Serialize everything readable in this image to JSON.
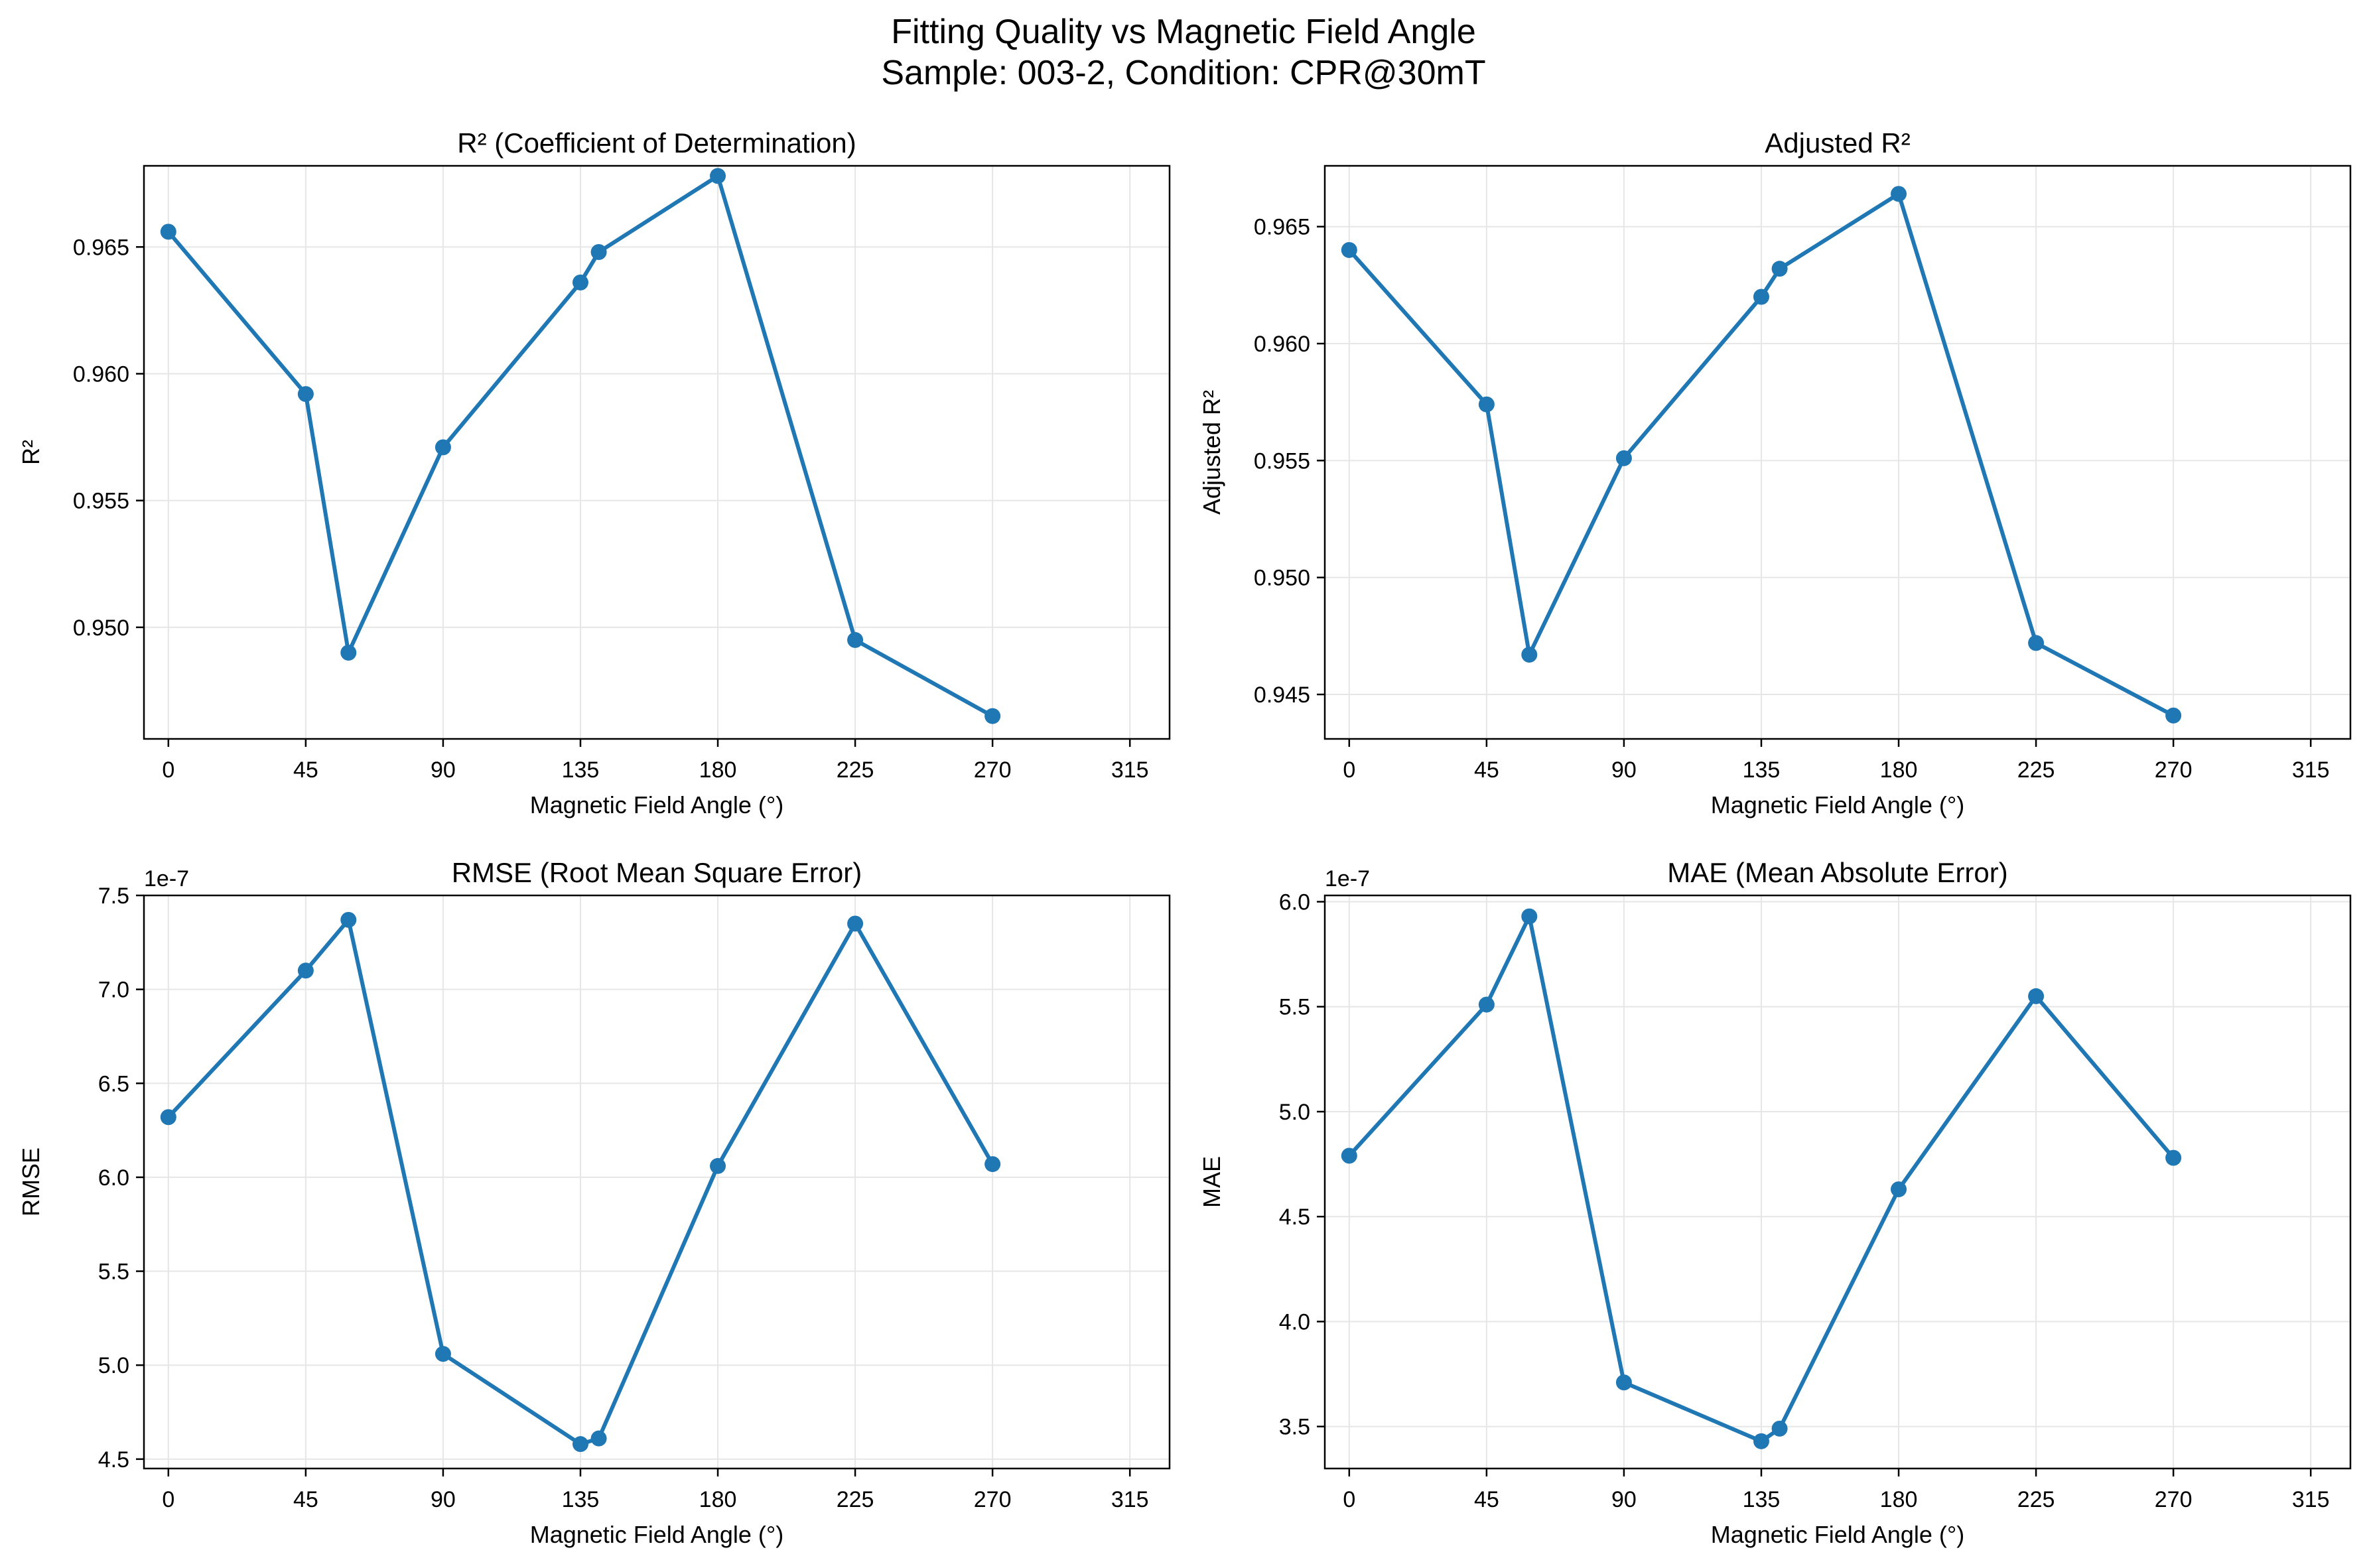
{
  "figure": {
    "title_line1": "Fitting Quality vs Magnetic Field Angle",
    "title_line2": "Sample: 003-2, Condition: CPR@30mT"
  },
  "colors": {
    "series": "#1f77b4",
    "grid": "#e6e6e6",
    "axis": "#000000"
  },
  "chart_data": [
    {
      "type": "line",
      "title": "R² (Coefficient of Determination)",
      "xlabel": "Magnetic Field Angle (°)",
      "ylabel": "R²",
      "x": [
        0,
        45,
        59,
        90,
        135,
        141,
        180,
        225,
        270
      ],
      "values": [
        0.9656,
        0.9592,
        0.949,
        0.9571,
        0.9636,
        0.9648,
        0.9678,
        0.9495,
        0.9465
      ],
      "xlim": [
        -8,
        328
      ],
      "ylim": [
        0.9456,
        0.9682
      ],
      "xticks": [
        0,
        45,
        90,
        135,
        180,
        225,
        270,
        315
      ],
      "xtick_labels": [
        "0",
        "45",
        "90",
        "135",
        "180",
        "225",
        "270",
        "315"
      ],
      "yticks": [
        0.95,
        0.955,
        0.96,
        0.965
      ],
      "ytick_labels": [
        "0.950",
        "0.955",
        "0.960",
        "0.965"
      ],
      "offset_text": "",
      "grid": true,
      "marker": "circle"
    },
    {
      "type": "line",
      "title": "Adjusted R²",
      "xlabel": "Magnetic Field Angle (°)",
      "ylabel": "Adjusted R²",
      "x": [
        0,
        45,
        59,
        90,
        135,
        141,
        180,
        225,
        270
      ],
      "values": [
        0.964,
        0.9574,
        0.9467,
        0.9551,
        0.962,
        0.9632,
        0.9664,
        0.9472,
        0.9441
      ],
      "xlim": [
        -8,
        328
      ],
      "ylim": [
        0.9431,
        0.9676
      ],
      "xticks": [
        0,
        45,
        90,
        135,
        180,
        225,
        270,
        315
      ],
      "xtick_labels": [
        "0",
        "45",
        "90",
        "135",
        "180",
        "225",
        "270",
        "315"
      ],
      "yticks": [
        0.945,
        0.95,
        0.955,
        0.96,
        0.965
      ],
      "ytick_labels": [
        "0.945",
        "0.950",
        "0.955",
        "0.960",
        "0.965"
      ],
      "offset_text": "",
      "grid": true,
      "marker": "circle"
    },
    {
      "type": "line",
      "title": "RMSE (Root Mean Square Error)",
      "xlabel": "Magnetic Field Angle (°)",
      "ylabel": "RMSE",
      "x": [
        0,
        45,
        59,
        90,
        135,
        141,
        180,
        225,
        270
      ],
      "values": [
        6.32,
        7.1,
        7.37,
        5.06,
        4.58,
        4.61,
        6.06,
        7.35,
        6.07
      ],
      "xlim": [
        -8,
        328
      ],
      "ylim": [
        4.45,
        7.5
      ],
      "xticks": [
        0,
        45,
        90,
        135,
        180,
        225,
        270,
        315
      ],
      "xtick_labels": [
        "0",
        "45",
        "90",
        "135",
        "180",
        "225",
        "270",
        "315"
      ],
      "yticks": [
        4.5,
        5.0,
        5.5,
        6.0,
        6.5,
        7.0,
        7.5
      ],
      "ytick_labels": [
        "4.5",
        "5.0",
        "5.5",
        "6.0",
        "6.5",
        "7.0",
        "7.5"
      ],
      "offset_text": "1e-7",
      "grid": true,
      "marker": "circle"
    },
    {
      "type": "line",
      "title": "MAE (Mean Absolute Error)",
      "xlabel": "Magnetic Field Angle (°)",
      "ylabel": "MAE",
      "x": [
        0,
        45,
        59,
        90,
        135,
        141,
        180,
        225,
        270
      ],
      "values": [
        4.79,
        5.51,
        5.93,
        3.71,
        3.43,
        3.49,
        4.63,
        5.55,
        4.78
      ],
      "xlim": [
        -8,
        328
      ],
      "ylim": [
        3.3,
        6.03
      ],
      "xticks": [
        0,
        45,
        90,
        135,
        180,
        225,
        270,
        315
      ],
      "xtick_labels": [
        "0",
        "45",
        "90",
        "135",
        "180",
        "225",
        "270",
        "315"
      ],
      "yticks": [
        3.5,
        4.0,
        4.5,
        5.0,
        5.5,
        6.0
      ],
      "ytick_labels": [
        "3.5",
        "4.0",
        "4.5",
        "5.0",
        "5.5",
        "6.0"
      ],
      "offset_text": "1e-7",
      "grid": true,
      "marker": "circle"
    }
  ]
}
